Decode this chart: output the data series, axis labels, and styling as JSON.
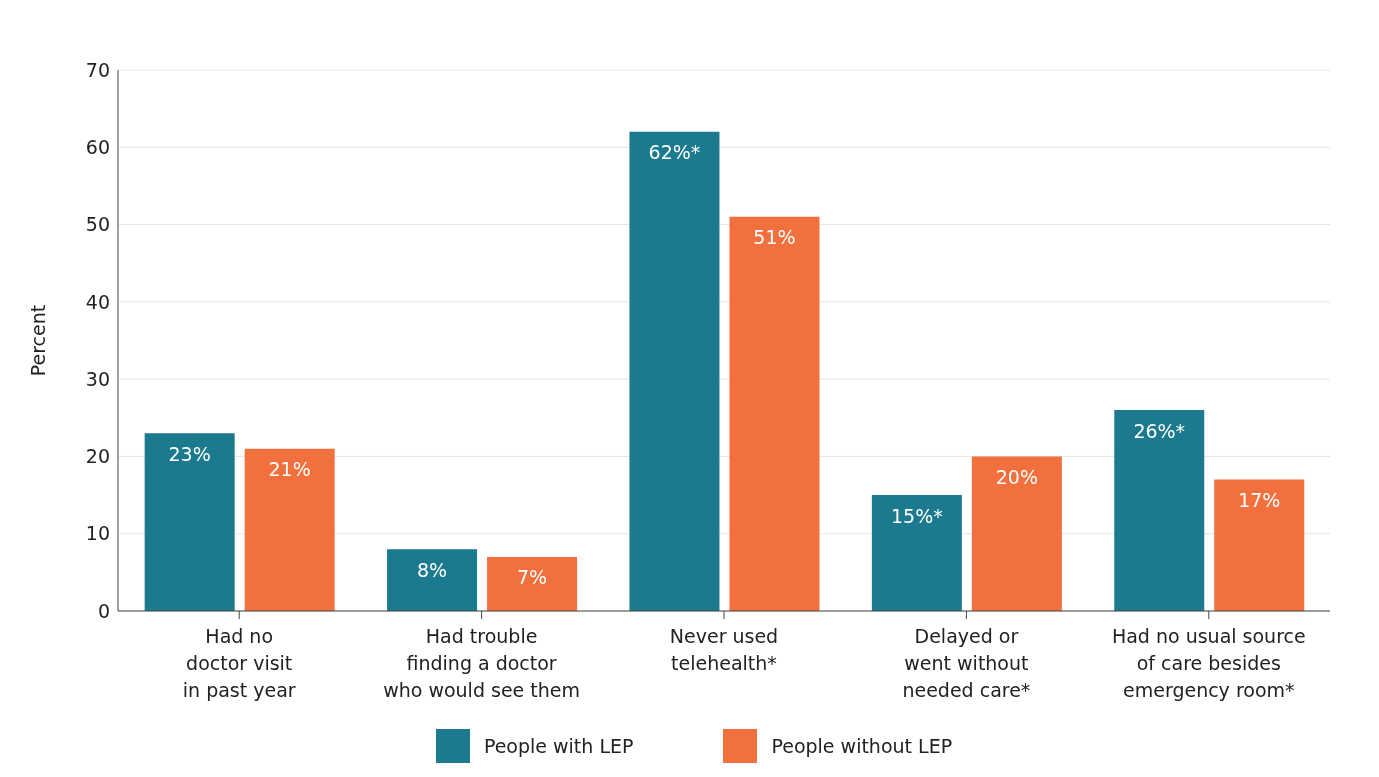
{
  "chart_data": {
    "type": "bar",
    "ylabel": "Percent",
    "categories": [
      "Had no\ndoctor visit\nin past year",
      "Had trouble\nfinding a doctor\nwho would see them",
      "Never used\ntelehealth*",
      "Delayed or\nwent without\nneeded care*",
      "Had no usual source\nof care besides\nemergency room*"
    ],
    "series": [
      {
        "name": "People with LEP",
        "color": "#1c7a8f",
        "values": [
          23,
          8,
          62,
          15,
          26
        ],
        "value_labels": [
          "23%",
          "8%",
          "62%*",
          "15%*",
          "26%*"
        ]
      },
      {
        "name": "People without LEP",
        "color": "#f2703e",
        "values": [
          21,
          7,
          51,
          20,
          17
        ],
        "value_labels": [
          "21%",
          "7%",
          "51%",
          "20%",
          "17%"
        ]
      }
    ],
    "ylim": [
      0,
      70
    ],
    "yticks": [
      0,
      10,
      20,
      30,
      40,
      50,
      60,
      70
    ],
    "grid": "y",
    "legend": "bottom"
  }
}
